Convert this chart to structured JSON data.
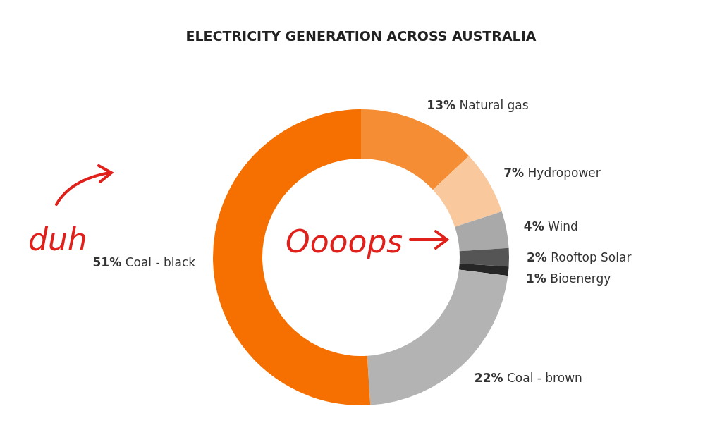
{
  "chart_data": {
    "type": "donut",
    "title": "ELECTRICITY GENERATION ACROSS AUSTRALIA",
    "categories": [
      "Natural gas",
      "Hydropower",
      "Wind",
      "Rooftop Solar",
      "Bioenergy",
      "Coal - brown",
      "Coal - black"
    ],
    "values": [
      13,
      7,
      4,
      2,
      1,
      22,
      51
    ],
    "colors": [
      "#f58d35",
      "#f9c89c",
      "#a9a9a9",
      "#555555",
      "#262626",
      "#b3b3b3",
      "#f57000"
    ],
    "value_labels": [
      "13%",
      "7%",
      "4%",
      "2%",
      "1%",
      "22%",
      "51%"
    ],
    "annotations": [
      "duh",
      "Oooops"
    ]
  }
}
